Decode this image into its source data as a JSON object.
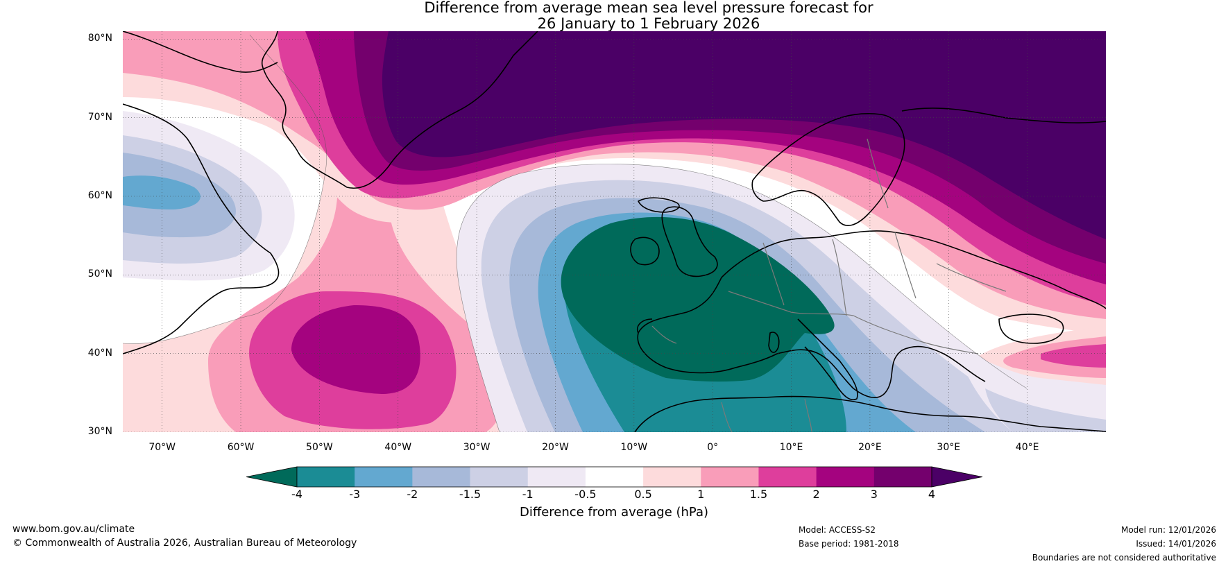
{
  "title": {
    "line1": "Difference from average mean sea level pressure forecast for",
    "line2": "26 January to 1 February 2026"
  },
  "map": {
    "lat_labels": [
      "80°N",
      "70°N",
      "60°N",
      "50°N",
      "40°N",
      "30°N"
    ],
    "lon_labels": [
      "70°W",
      "60°W",
      "50°W",
      "40°W",
      "30°W",
      "20°W",
      "10°W",
      "0°",
      "10°E",
      "20°E",
      "30°E",
      "40°E"
    ],
    "lat_values": [
      80,
      70,
      60,
      50,
      40,
      30
    ],
    "lon_values": [
      -70,
      -60,
      -50,
      -40,
      -30,
      -20,
      -10,
      0,
      10,
      20,
      30,
      40
    ],
    "lon_range": [
      -75,
      50
    ],
    "lat_range": [
      30,
      81
    ]
  },
  "colorbar": {
    "ticks": [
      "-4",
      "-3",
      "-2",
      "-1.5",
      "-1",
      "-0.5",
      "0.5",
      "1",
      "1.5",
      "2",
      "3",
      "4"
    ],
    "label": "Difference from average (hPa)",
    "colors": [
      "#006a5a",
      "#1b8c95",
      "#63a8d0",
      "#a7b9d9",
      "#cdd0e5",
      "#efe9f4",
      "#ffffff",
      "#fddbdc",
      "#f99db9",
      "#de3e9c",
      "#a4037f",
      "#74006d",
      "#4b0066"
    ]
  },
  "footer": {
    "website": "www.bom.gov.au/climate",
    "copyright": "© Commonwealth of Australia 2026, Australian Bureau of Meteorology",
    "model": "Model: ACCESS-S2",
    "base_period": "Base period: 1981-2018",
    "model_run": "Model run: 12/01/2026",
    "issued": "Issued: 14/01/2026",
    "disclaimer": "Boundaries are not considered authoritative"
  }
}
